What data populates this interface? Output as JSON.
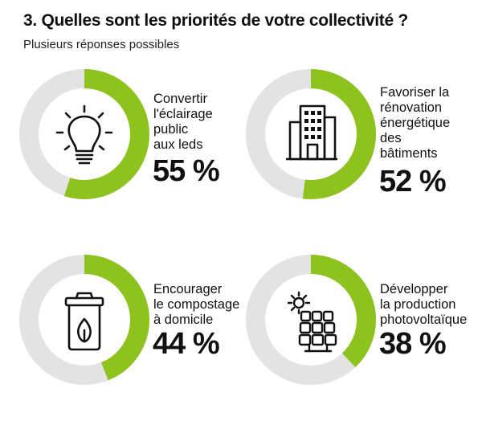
{
  "header": {
    "title": "3. Quelles sont les priorités de votre collectivité ?",
    "subtitle": "Plusieurs réponses possibles"
  },
  "colors": {
    "accent": "#8dc21f",
    "track": "#e3e3e3",
    "icon": "#111111"
  },
  "chart_data": {
    "type": "pie",
    "title": "3. Quelles sont les priorités de votre collectivité ?",
    "subtitle": "Plusieurs réponses possibles",
    "items": [
      {
        "label": "Convertir\nl'éclairage\npublic\naux leds",
        "value": 55,
        "display": "55 %",
        "icon": "light-bulb-icon"
      },
      {
        "label": "Favoriser la\nrénovation\nénergétique\ndes\nbâtiments",
        "value": 52,
        "display": "52 %",
        "icon": "building-icon"
      },
      {
        "label": "Encourager\nle compostage\nà domicile",
        "value": 44,
        "display": "44 %",
        "icon": "compost-bin-icon"
      },
      {
        "label": "Développer\nla production\nphotovoltaïque",
        "value": 38,
        "display": "38 %",
        "icon": "solar-panel-icon"
      }
    ]
  }
}
